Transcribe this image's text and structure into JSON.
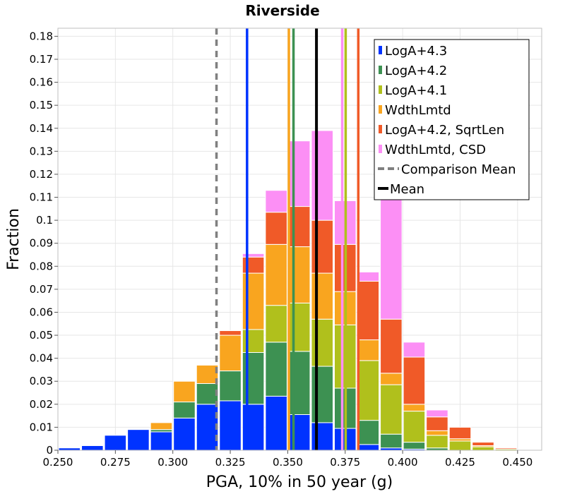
{
  "chart_data": {
    "type": "bar",
    "stacked": true,
    "title": "Riverside",
    "xlabel": "PGA, 10% in 50 year (g)",
    "ylabel": "Fraction",
    "xlim": [
      0.25,
      0.4605
    ],
    "ylim": [
      0,
      0.1835
    ],
    "bin_width": 0.01,
    "grid": true,
    "legend_position": "top-right",
    "xticks": [
      "0.250",
      "0.275",
      "0.300",
      "0.325",
      "0.350",
      "0.375",
      "0.400",
      "0.425",
      "0.450"
    ],
    "yticks": [
      "0",
      "0.01",
      "0.02",
      "0.03",
      "0.04",
      "0.05",
      "0.06",
      "0.07",
      "0.08",
      "0.09",
      "0.1",
      "0.11",
      "0.12",
      "0.13",
      "0.14",
      "0.15",
      "0.16",
      "0.17",
      "0.18"
    ],
    "bin_starts": [
      0.25,
      0.26,
      0.27,
      0.28,
      0.29,
      0.3,
      0.31,
      0.32,
      0.33,
      0.34,
      0.35,
      0.36,
      0.37,
      0.38,
      0.39,
      0.4,
      0.41,
      0.42,
      0.43,
      0.44
    ],
    "series": [
      {
        "name": "LogA+4.3",
        "color": "#0033ff",
        "values": [
          0.001,
          0.002,
          0.0065,
          0.009,
          0.008,
          0.014,
          0.02,
          0.0215,
          0.02,
          0.0235,
          0.0155,
          0.012,
          0.0095,
          0.0025,
          0.001,
          0.0005,
          0.0,
          0.0,
          0.0,
          0.0
        ]
      },
      {
        "name": "LogA+4.2",
        "color": "#3d9152",
        "values": [
          0.0,
          0.0,
          0.0,
          0.0,
          0.001,
          0.007,
          0.009,
          0.013,
          0.0225,
          0.0235,
          0.0275,
          0.0245,
          0.0175,
          0.0105,
          0.006,
          0.003,
          0.001,
          0.0,
          0.0,
          0.0
        ]
      },
      {
        "name": "LogA+4.1",
        "color": "#b0c01c",
        "values": [
          0.0,
          0.0,
          0.0,
          0.0,
          0.0,
          0.0,
          0.0,
          0.0,
          0.01,
          0.016,
          0.021,
          0.0205,
          0.0275,
          0.026,
          0.0215,
          0.0135,
          0.0055,
          0.004,
          0.0015,
          0.0005
        ]
      },
      {
        "name": "WdthLmtd",
        "color": "#f9a51f",
        "values": [
          0.0,
          0.0,
          0.0,
          0.0,
          0.003,
          0.009,
          0.008,
          0.0155,
          0.0245,
          0.0265,
          0.0245,
          0.02,
          0.0145,
          0.009,
          0.005,
          0.003,
          0.002,
          0.001,
          0.0005,
          0.0
        ]
      },
      {
        "name": "LogA+4.2, SqrtLen",
        "color": "#f05a28",
        "values": [
          0.0,
          0.0,
          0.0,
          0.0,
          0.0,
          0.0,
          0.0,
          0.002,
          0.007,
          0.014,
          0.0175,
          0.023,
          0.0205,
          0.0255,
          0.0235,
          0.0205,
          0.006,
          0.005,
          0.0015,
          0.0005
        ]
      },
      {
        "name": "WdthLmtd, CSD",
        "color": "#fc8ff5",
        "values": [
          0.0,
          0.0,
          0.0,
          0.0,
          0.0,
          0.0,
          0.0,
          0.0,
          0.0015,
          0.0095,
          0.0285,
          0.039,
          0.019,
          0.004,
          0.0555,
          0.0065,
          0.003,
          0.0,
          0.0,
          0.0
        ]
      }
    ],
    "vertical_lines": [
      {
        "name": "LogA+4.3",
        "x": 0.3323,
        "color": "#0033ff",
        "style": "solid"
      },
      {
        "name": "WdthLmtd",
        "x": 0.3505,
        "color": "#f9a51f",
        "style": "solid"
      },
      {
        "name": "LogA+4.2",
        "x": 0.3525,
        "color": "#3d9152",
        "style": "solid"
      },
      {
        "name": "WdthLmtd, CSD",
        "x": 0.3737,
        "color": "#fc8ff5",
        "style": "solid"
      },
      {
        "name": "LogA+4.1",
        "x": 0.3752,
        "color": "#b0c01c",
        "style": "solid"
      },
      {
        "name": "LogA+4.2, SqrtLen",
        "x": 0.3807,
        "color": "#f05a28",
        "style": "solid"
      },
      {
        "name": "Comparison Mean",
        "x": 0.319,
        "color": "#808080",
        "style": "dashed"
      },
      {
        "name": "Mean",
        "x": 0.3625,
        "color": "#000000",
        "style": "solid"
      }
    ],
    "legend": [
      {
        "label": "LogA+4.3",
        "color": "#0033ff",
        "kind": "patch"
      },
      {
        "label": "LogA+4.2",
        "color": "#3d9152",
        "kind": "patch"
      },
      {
        "label": "LogA+4.1",
        "color": "#b0c01c",
        "kind": "patch"
      },
      {
        "label": "WdthLmtd",
        "color": "#f9a51f",
        "kind": "patch"
      },
      {
        "label": "LogA+4.2, SqrtLen",
        "color": "#f05a28",
        "kind": "patch"
      },
      {
        "label": "WdthLmtd, CSD",
        "color": "#fc8ff5",
        "kind": "patch"
      },
      {
        "label": "Comparison Mean",
        "color": "#808080",
        "kind": "dashed-line"
      },
      {
        "label": "Mean",
        "color": "#000000",
        "kind": "line"
      }
    ]
  }
}
